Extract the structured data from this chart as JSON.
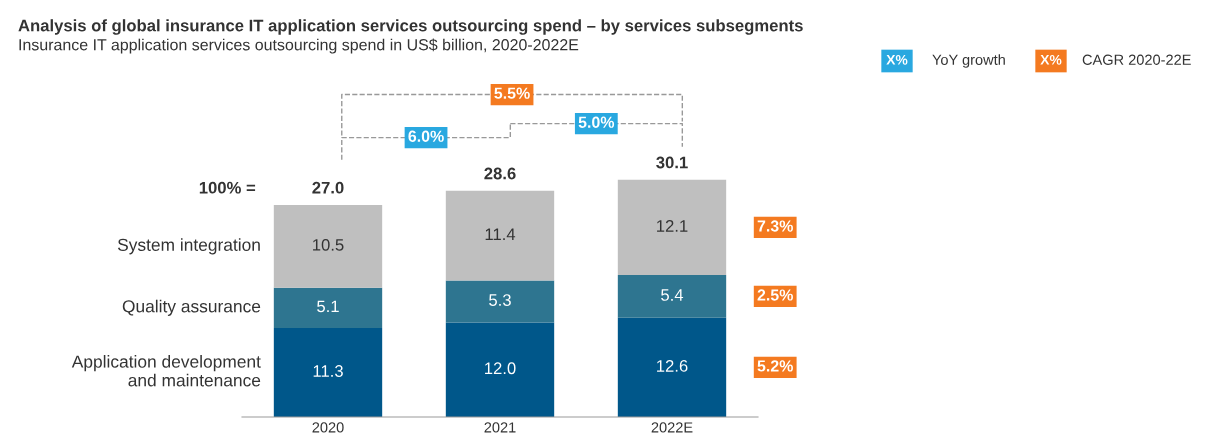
{
  "chart_data": {
    "type": "bar",
    "title": "Analysis of global insurance IT application services outsourcing spend – by services subsegments",
    "subtitle": "Insurance IT application services outsourcing spend in US$ billion, 2020-2022E",
    "categories": [
      "2020",
      "2021",
      "2022E"
    ],
    "stacked": true,
    "series": [
      {
        "name": "Application development and maintenance",
        "color": "#00578a",
        "values": [
          11.3,
          12.0,
          12.6
        ],
        "value_labels": [
          "11.3",
          "12.0",
          "12.6"
        ]
      },
      {
        "name": "Quality assurance",
        "color": "#2e7590",
        "values": [
          5.1,
          5.3,
          5.4
        ],
        "value_labels": [
          "5.1",
          "5.3",
          "5.4"
        ]
      },
      {
        "name": "System integration",
        "color": "#bfbfbf",
        "values": [
          10.5,
          11.4,
          12.1
        ],
        "value_labels": [
          "10.5",
          "11.4",
          "12.1"
        ]
      }
    ],
    "totals": [
      "27.0",
      "28.6",
      "30.1"
    ],
    "annotations": [
      "100% =",
      "6.0%",
      "5.0%",
      "5.5%",
      "5.2%",
      "2.5%",
      "7.3%",
      "X%",
      "YoY growth",
      "X%",
      "CAGR 2020-22E"
    ]
  }
}
